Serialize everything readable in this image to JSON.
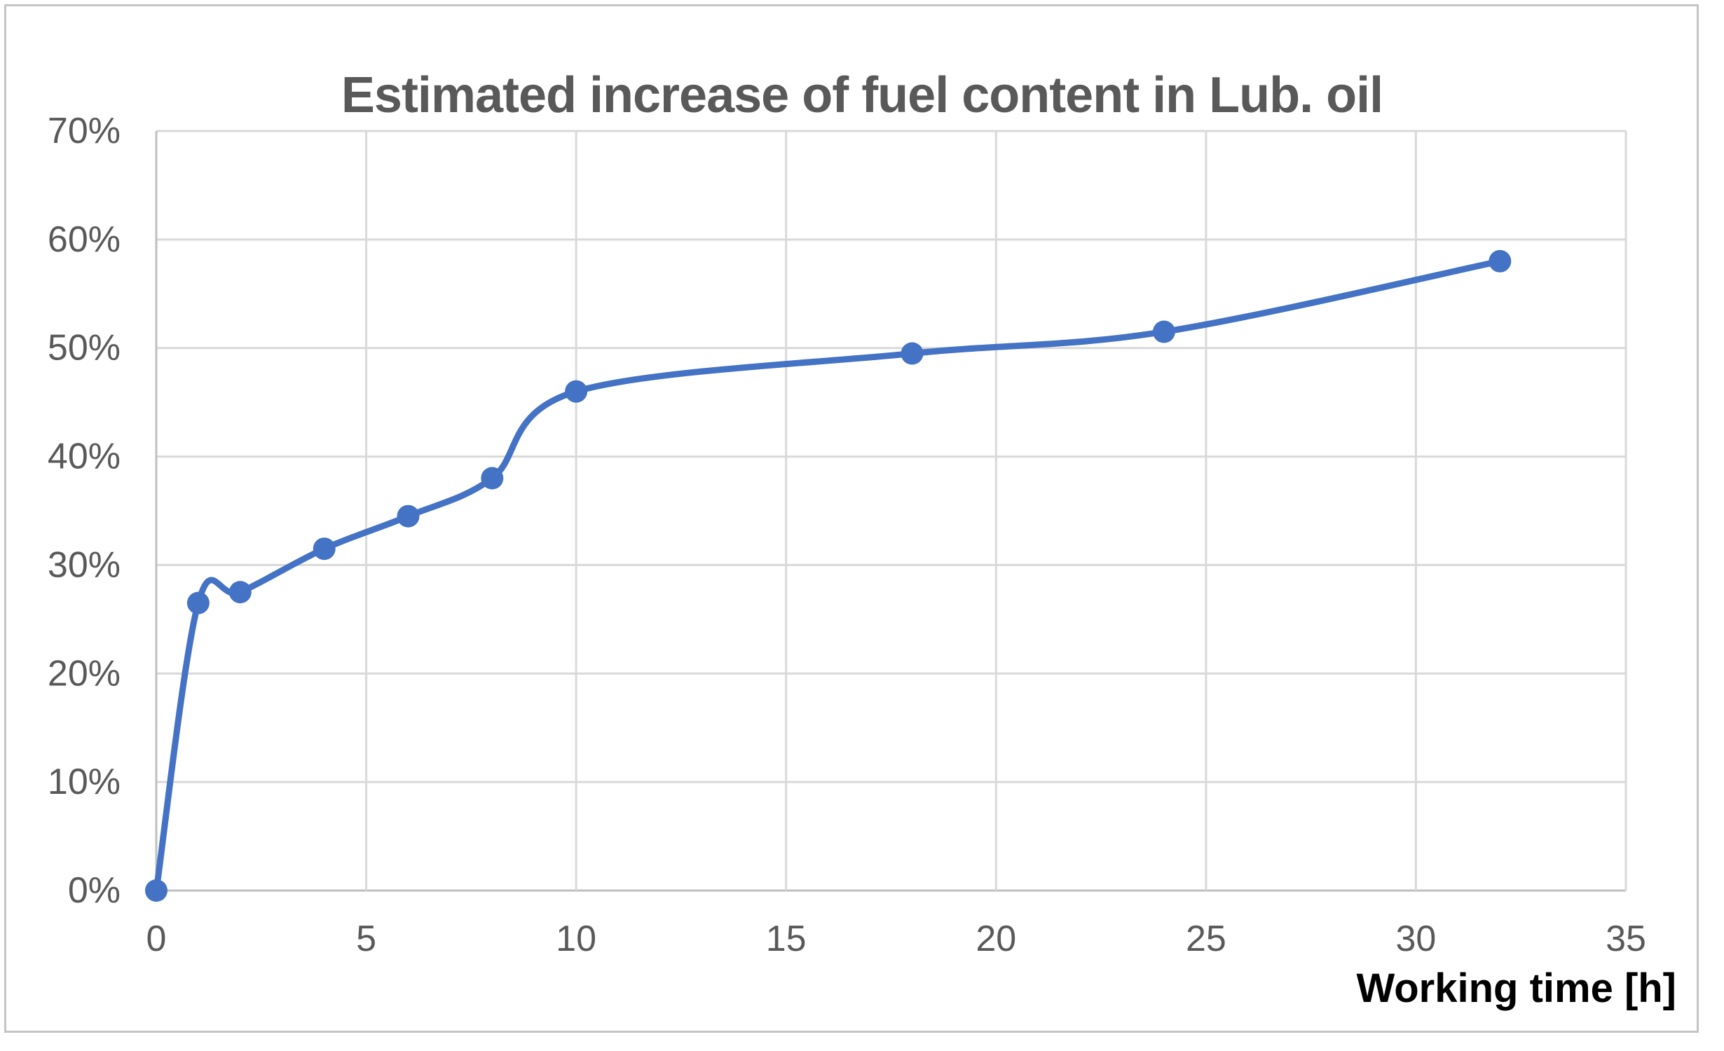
{
  "chart_data": {
    "type": "line",
    "title": "Estimated increase of fuel content in Lub. oil",
    "xlabel": "Working time [h]",
    "ylabel": "",
    "x": [
      0,
      1,
      2,
      4,
      6,
      8,
      10,
      18,
      24,
      32
    ],
    "y": [
      0,
      26.5,
      27.5,
      31.5,
      34.5,
      38,
      46,
      49.5,
      51.5,
      58
    ],
    "y_unit": "percent",
    "xlim": [
      0,
      35
    ],
    "ylim": [
      0,
      70
    ],
    "x_ticks": [
      0,
      5,
      10,
      15,
      20,
      25,
      30,
      35
    ],
    "y_ticks": [
      0,
      10,
      20,
      30,
      40,
      50,
      60,
      70
    ],
    "x_tick_labels": [
      "0",
      "5",
      "10",
      "15",
      "20",
      "25",
      "30",
      "35"
    ],
    "y_tick_labels": [
      "0%",
      "10%",
      "20%",
      "30%",
      "40%",
      "50%",
      "60%",
      "70%"
    ],
    "grid": true,
    "smooth_line": true,
    "markers": true,
    "legend_position": "none"
  },
  "style": {
    "series_color": "#4472c4",
    "grid_color": "#d9d9d9",
    "axis_color": "#bfbfbf",
    "title_color": "#595959",
    "tick_color": "#595959",
    "xlabel_color": "#000000",
    "frame_border_color": "#c4c4c4",
    "background_color": "#ffffff"
  }
}
